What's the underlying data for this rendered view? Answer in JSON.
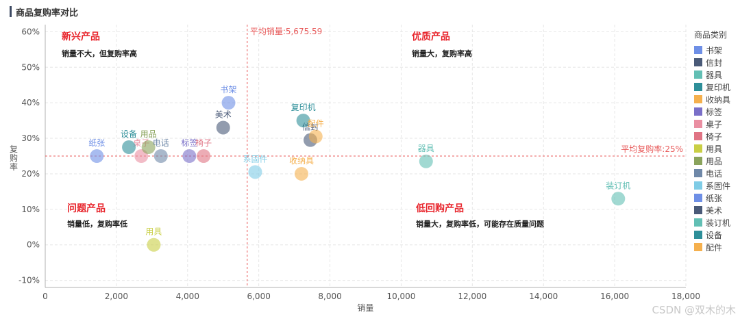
{
  "page": {
    "title": "商品复购率对比",
    "watermark": "CSDN @双木的木"
  },
  "chart_data": {
    "type": "scatter",
    "xlabel": "销量",
    "ylabel": "复购率",
    "xlim": [
      0,
      18000
    ],
    "ylim": [
      -0.12,
      0.62
    ],
    "x_ticks": [
      0,
      2000,
      4000,
      6000,
      8000,
      10000,
      12000,
      14000,
      16000,
      18000
    ],
    "x_tick_labels": [
      "0",
      "2,000",
      "4,000",
      "6,000",
      "8,000",
      "10,000",
      "12,000",
      "14,000",
      "16,000",
      "18,000"
    ],
    "y_ticks": [
      -0.1,
      0,
      0.1,
      0.2,
      0.3,
      0.4,
      0.5,
      0.6
    ],
    "y_tick_labels": [
      "-10%",
      "0%",
      "10%",
      "20%",
      "30%",
      "40%",
      "50%",
      "60%"
    ],
    "grid": true,
    "legend_title": "商品类别",
    "legend_position": "right",
    "points": [
      {
        "name": "书架",
        "x": 5150,
        "y": 0.4,
        "color": "#6e8fe6"
      },
      {
        "name": "信封",
        "x": 7450,
        "y": 0.295,
        "color": "#4a5a78"
      },
      {
        "name": "器具",
        "x": 10700,
        "y": 0.235,
        "color": "#62bfb4"
      },
      {
        "name": "复印机",
        "x": 7250,
        "y": 0.35,
        "color": "#2e8f99"
      },
      {
        "name": "收纳具",
        "x": 7200,
        "y": 0.2,
        "color": "#f5b04e"
      },
      {
        "name": "标签",
        "x": 4050,
        "y": 0.25,
        "color": "#7a6fc8"
      },
      {
        "name": "桌子",
        "x": 2700,
        "y": 0.25,
        "color": "#ea8fa2"
      },
      {
        "name": "椅子",
        "x": 4450,
        "y": 0.25,
        "color": "#e07484"
      },
      {
        "name": "用具",
        "x": 3050,
        "y": 0.0,
        "color": "#c9cf45"
      },
      {
        "name": "用品",
        "x": 2900,
        "y": 0.275,
        "color": "#8aa35c"
      },
      {
        "name": "电话",
        "x": 3250,
        "y": 0.25,
        "color": "#6f88a8"
      },
      {
        "name": "系固件",
        "x": 5900,
        "y": 0.205,
        "color": "#7fcce6"
      },
      {
        "name": "纸张",
        "x": 1450,
        "y": 0.25,
        "color": "#6e8fe6"
      },
      {
        "name": "美术",
        "x": 5000,
        "y": 0.33,
        "color": "#4a5a78"
      },
      {
        "name": "装订机",
        "x": 16100,
        "y": 0.13,
        "color": "#62bfb4"
      },
      {
        "name": "设备",
        "x": 2350,
        "y": 0.275,
        "color": "#2e8f99"
      },
      {
        "name": "配件",
        "x": 7600,
        "y": 0.305,
        "color": "#f5b04e"
      }
    ],
    "reference_lines": {
      "avg_sales": {
        "value": 5675.59,
        "label": "平均销量:5,675.59"
      },
      "avg_repurchase": {
        "value": 0.25,
        "label": "平均复购率:25%"
      }
    },
    "quadrants": [
      {
        "title": "新兴产品",
        "desc": "销量不大，但复购率高"
      },
      {
        "title": "优质产品",
        "desc": "销量大，复购率高"
      },
      {
        "title": "问题产品",
        "desc": "销量低，复购率低"
      },
      {
        "title": "低回购产品",
        "desc": "销量大，复购率低，可能存在质量问题"
      }
    ]
  }
}
